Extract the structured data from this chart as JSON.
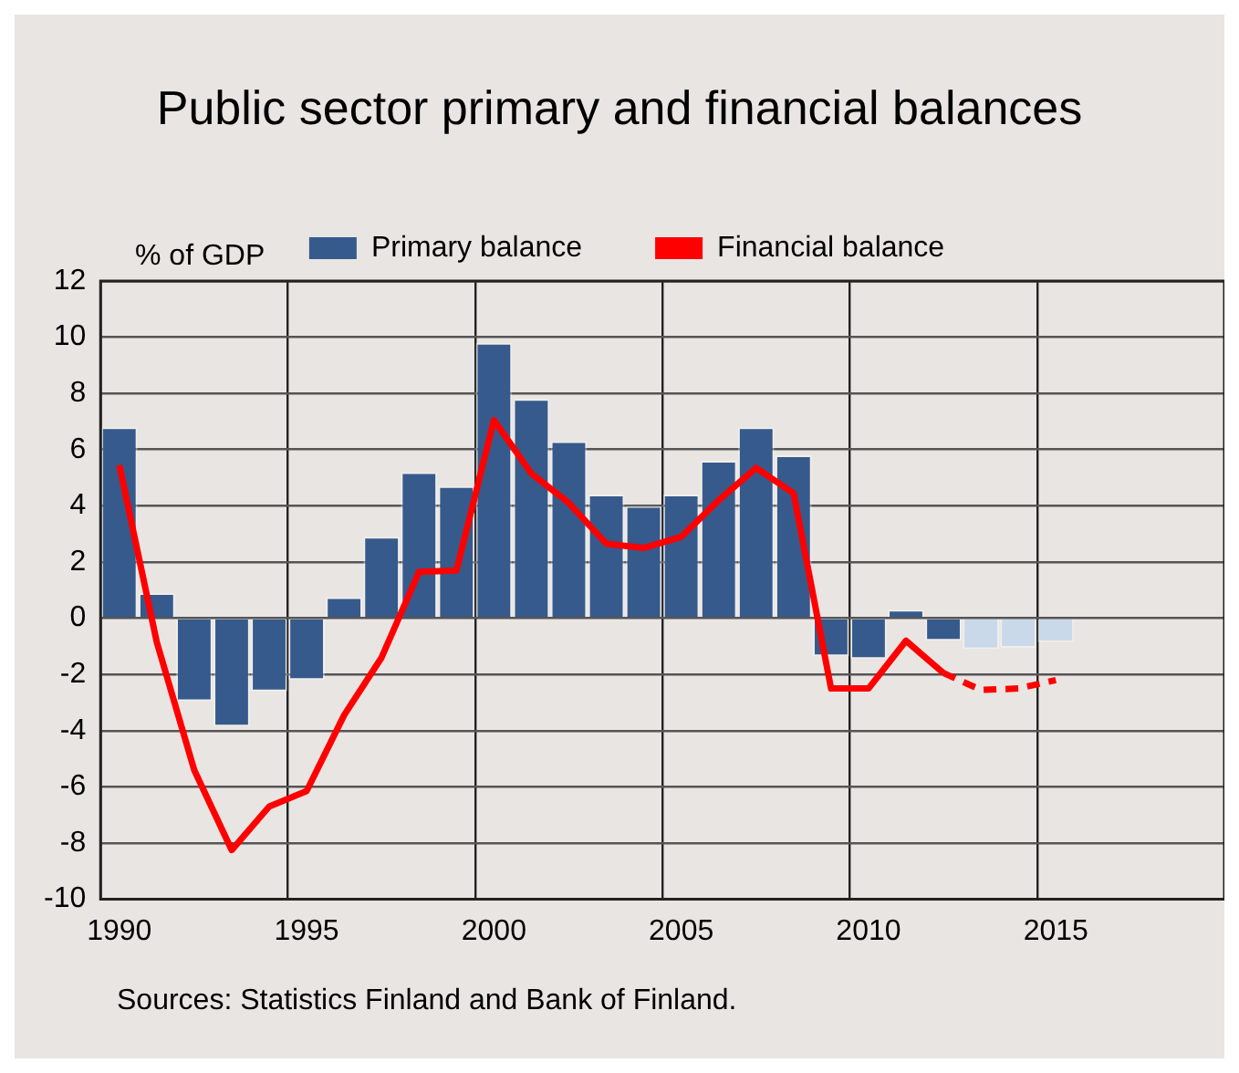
{
  "chart_data": {
    "type": "bar",
    "title": "Public sector primary and financial balances",
    "ylabel": "% of GDP",
    "annotations": [
      "Sources: Statistics Finland and Bank of Finland."
    ],
    "categories": [
      "1990",
      null,
      null,
      null,
      null,
      "1995",
      null,
      null,
      null,
      null,
      "2000",
      null,
      null,
      null,
      null,
      "2005",
      null,
      null,
      null,
      null,
      "2010",
      null,
      null,
      null,
      null,
      "2015",
      null,
      null,
      null,
      null
    ],
    "series": [
      {
        "name": "Primary balance",
        "color": "#365a8c",
        "colors": [
          "#365a8c",
          "#365a8c",
          "#365a8c",
          "#365a8c",
          "#365a8c",
          "#365a8c",
          "#365a8c",
          "#365a8c",
          "#365a8c",
          "#365a8c",
          "#365a8c",
          "#365a8c",
          "#365a8c",
          "#365a8c",
          "#365a8c",
          "#365a8c",
          "#365a8c",
          "#365a8c",
          "#365a8c",
          "#365a8c",
          "#365a8c",
          "#365a8c",
          "#365a8c",
          "#c9d9ea",
          "#c9d9ea",
          "#c9d9ea",
          "#365a8c",
          "#365a8c",
          "#365a8c",
          "#365a8c"
        ],
        "values": [
          6.8,
          0.9,
          -2.95,
          -3.85,
          -2.6,
          -2.2,
          0.75,
          2.9,
          5.2,
          4.7,
          9.8,
          7.8,
          6.3,
          4.4,
          4.0,
          4.4,
          5.6,
          6.8,
          5.8,
          -1.35,
          -1.45,
          0.3,
          -0.8,
          -1.1,
          -1.05,
          -0.85,
          null,
          null,
          null,
          null
        ]
      },
      {
        "type": "line",
        "name": "Financial balance",
        "color": "#ff0000",
        "line_style": "solid",
        "values": [
          5.45,
          -0.85,
          -5.4,
          -8.25,
          -6.7,
          -6.15,
          -3.45,
          -1.4,
          1.65,
          1.7,
          7.05,
          5.15,
          4.1,
          2.65,
          2.5,
          2.9,
          4.2,
          5.35,
          4.45,
          -2.5,
          -2.5,
          -0.8,
          -1.95,
          null,
          null,
          null,
          null,
          null,
          null,
          null
        ]
      },
      {
        "type": "line",
        "color": "#ff0000",
        "line_style": "dashed",
        "values": [
          null,
          null,
          null,
          null,
          null,
          null,
          null,
          null,
          null,
          null,
          null,
          null,
          null,
          null,
          null,
          null,
          null,
          null,
          null,
          null,
          null,
          null,
          -1.95,
          -2.55,
          -2.5,
          -2.2,
          null,
          null,
          null,
          null
        ]
      }
    ],
    "ylim": [
      -10,
      12
    ],
    "yticks": [
      -10,
      -8,
      -6,
      -4,
      -2,
      0,
      2,
      4,
      6,
      8,
      10,
      12
    ],
    "grid": true,
    "legend": "top",
    "marker": "none"
  }
}
